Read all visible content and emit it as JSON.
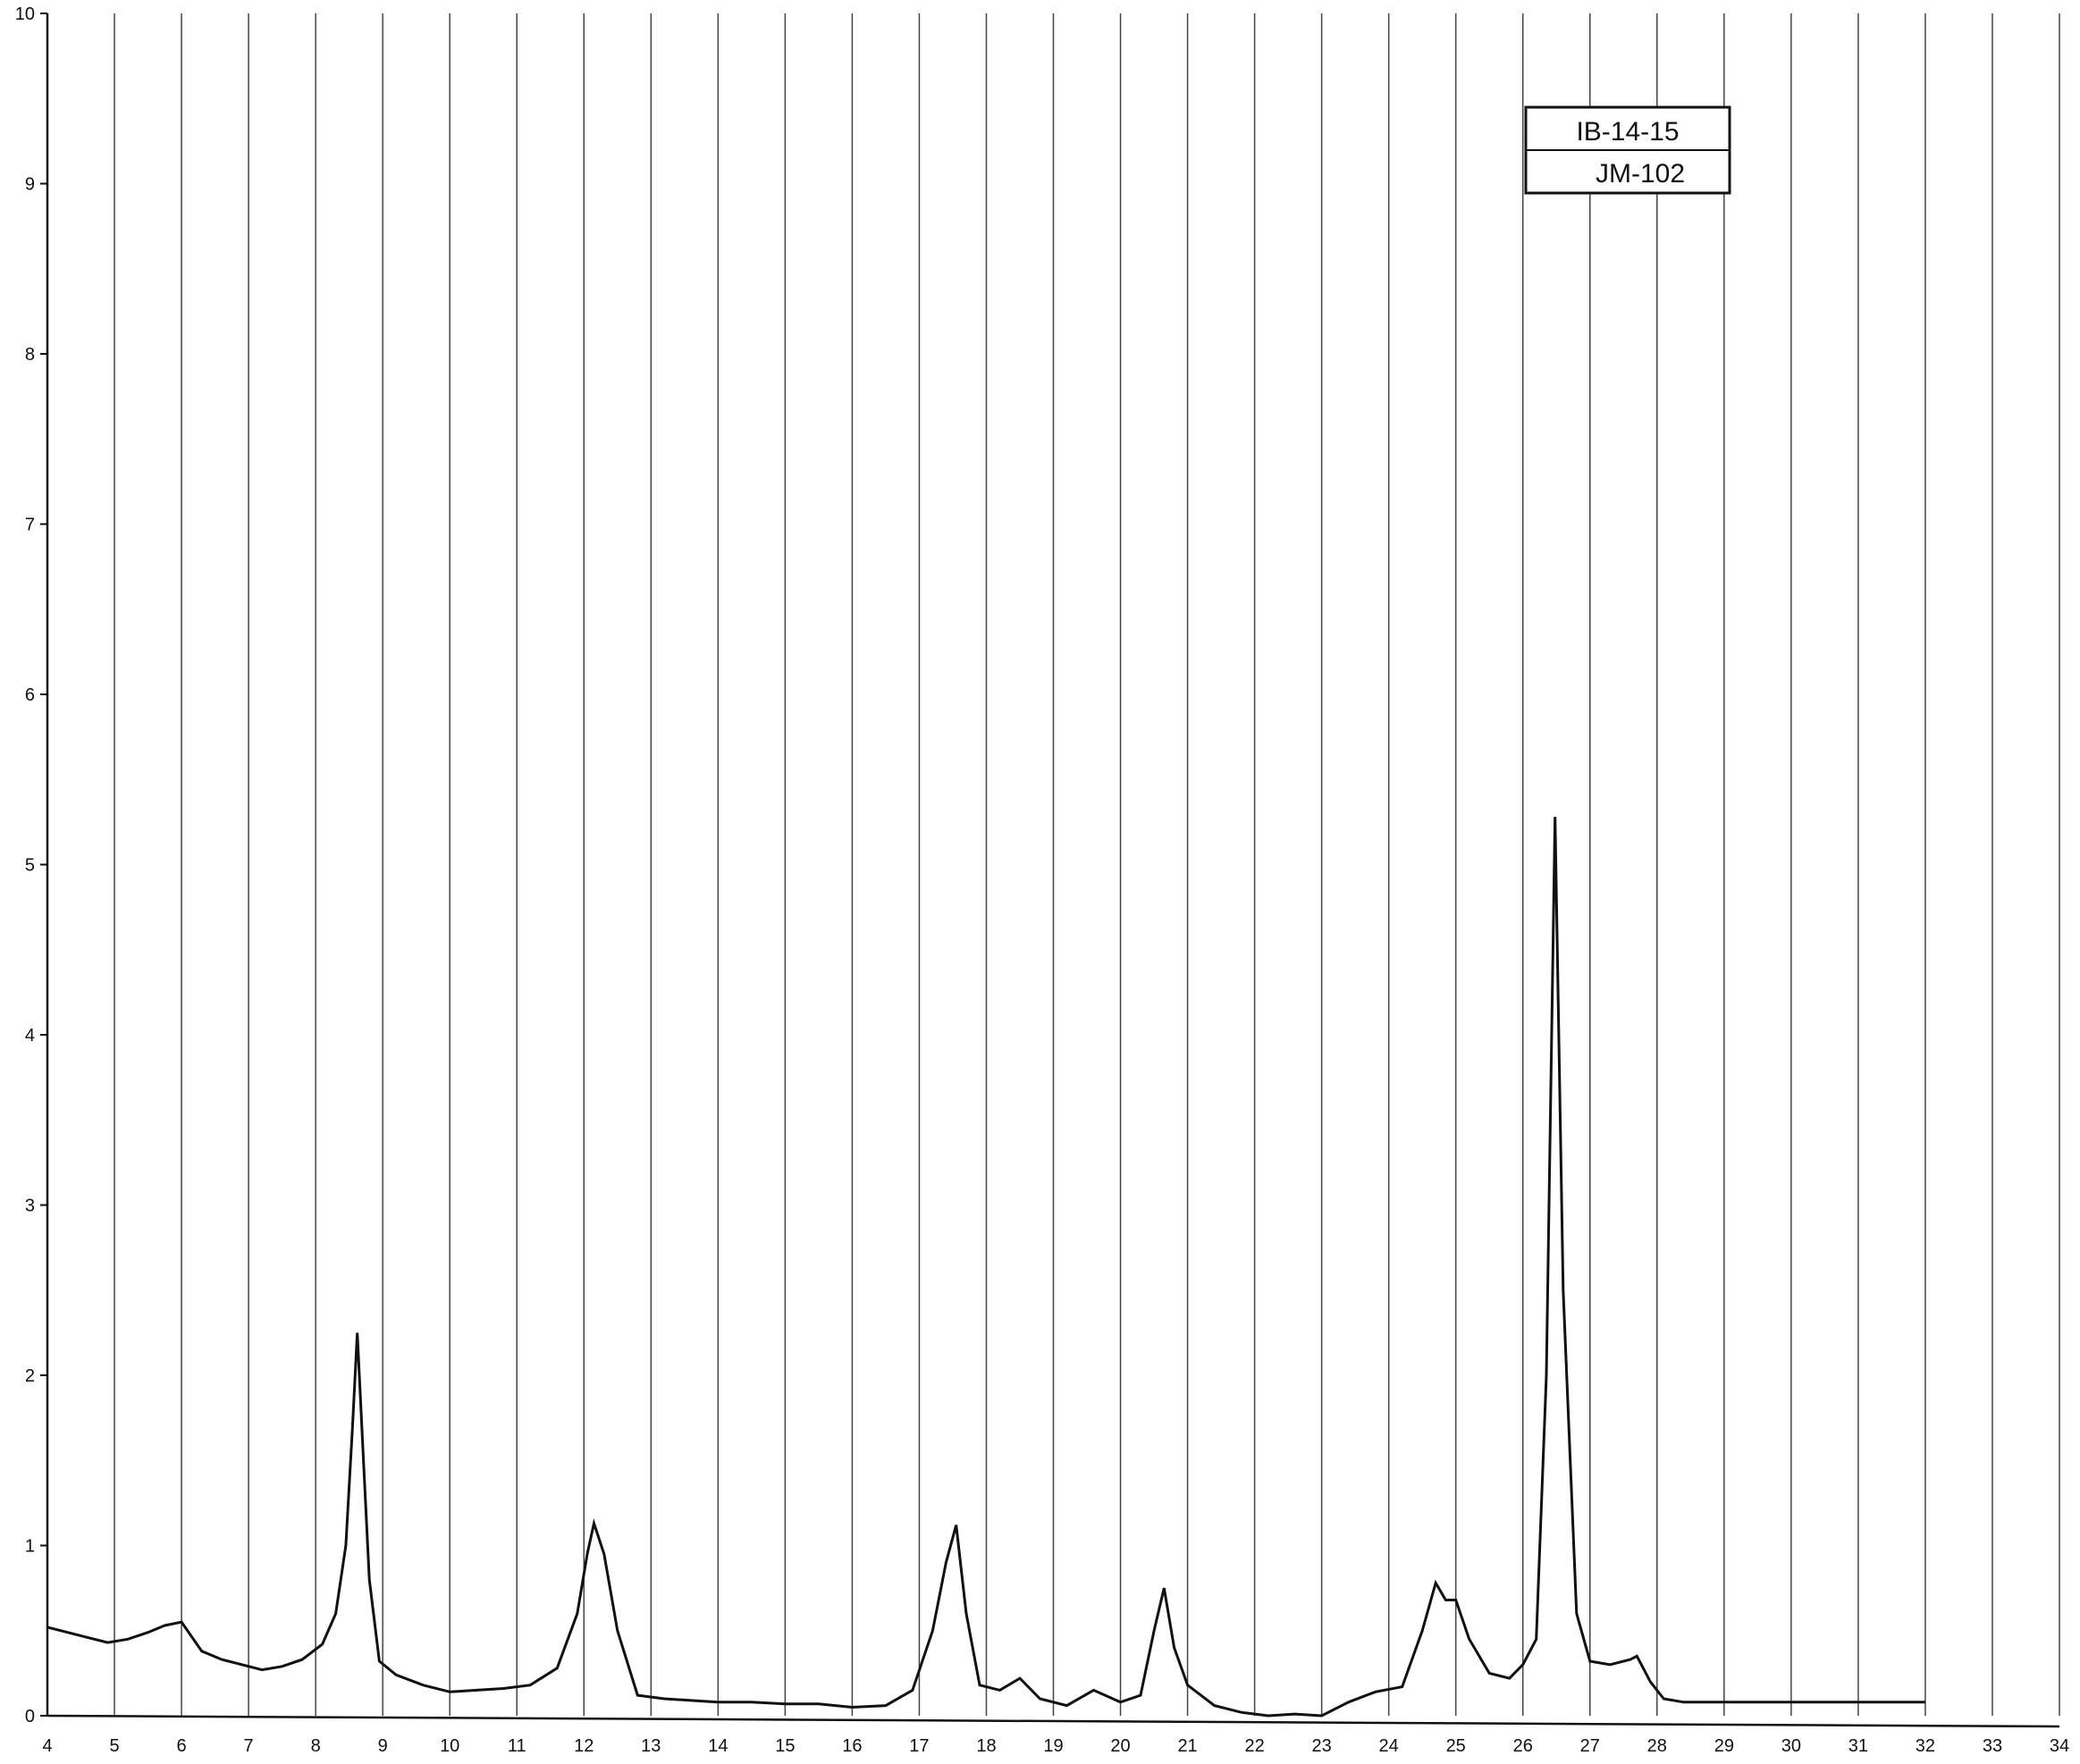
{
  "chart_data": {
    "type": "line",
    "title": "",
    "xlabel": "",
    "ylabel": "",
    "xlim": [
      4,
      34
    ],
    "ylim": [
      0,
      10
    ],
    "x_ticks": [
      "4",
      "5",
      "6",
      "7",
      "8",
      "9",
      "10",
      "11",
      "12",
      "13",
      "14",
      "15",
      "16",
      "17",
      "18",
      "19",
      "20",
      "21",
      "22",
      "23",
      "24",
      "25",
      "26",
      "27",
      "28",
      "29",
      "30",
      "31",
      "32",
      "33",
      "34"
    ],
    "y_ticks": [
      "0",
      "1",
      "2",
      "3",
      "4",
      "5",
      "6",
      "7",
      "8",
      "9",
      "10"
    ],
    "grid": "vertical",
    "label_box": {
      "line1": "IB-14-15",
      "line2": "JM-102"
    },
    "series": [
      {
        "x": [
          4.0,
          4.3,
          4.6,
          4.9,
          5.2,
          5.5,
          5.75,
          6.0,
          6.3,
          6.6,
          6.9,
          7.2,
          7.5,
          7.8,
          8.1,
          8.3,
          8.45,
          8.55,
          8.62,
          8.7,
          8.8,
          8.95,
          9.2,
          9.6,
          10.0,
          10.4,
          10.8,
          11.2,
          11.6,
          11.9,
          12.05,
          12.15,
          12.3,
          12.5,
          12.8,
          13.2,
          13.6,
          14.0,
          14.5,
          15.0,
          15.5,
          16.0,
          16.5,
          16.9,
          17.2,
          17.4,
          17.55,
          17.7,
          17.9,
          18.2,
          18.5,
          18.8,
          19.2,
          19.6,
          20.0,
          20.3,
          20.5,
          20.65,
          20.8,
          21.0,
          21.4,
          21.8,
          22.2,
          22.6,
          23.0,
          23.4,
          23.8,
          24.2,
          24.5,
          24.7,
          24.85,
          25.0,
          25.2,
          25.5,
          25.8,
          26.0,
          26.2,
          26.35,
          26.48,
          26.6,
          26.8,
          27.0,
          27.3,
          27.6,
          27.7,
          27.9,
          28.1,
          28.4,
          29.0,
          30.0,
          31.0,
          32.0
        ],
        "y": [
          0.52,
          0.49,
          0.46,
          0.43,
          0.45,
          0.49,
          0.53,
          0.55,
          0.38,
          0.33,
          0.3,
          0.27,
          0.29,
          0.33,
          0.42,
          0.6,
          1.0,
          1.7,
          2.25,
          1.6,
          0.8,
          0.32,
          0.24,
          0.18,
          0.14,
          0.15,
          0.16,
          0.18,
          0.28,
          0.6,
          0.95,
          1.13,
          0.95,
          0.5,
          0.12,
          0.1,
          0.09,
          0.08,
          0.08,
          0.07,
          0.07,
          0.05,
          0.06,
          0.15,
          0.5,
          0.9,
          1.12,
          0.6,
          0.18,
          0.15,
          0.22,
          0.1,
          0.06,
          0.15,
          0.08,
          0.12,
          0.5,
          0.75,
          0.4,
          0.18,
          0.06,
          0.02,
          0.0,
          0.01,
          0.0,
          0.08,
          0.14,
          0.17,
          0.5,
          0.78,
          0.68,
          0.68,
          0.45,
          0.25,
          0.22,
          0.3,
          0.45,
          2.0,
          5.28,
          2.5,
          0.6,
          0.32,
          0.3,
          0.33,
          0.35,
          0.2,
          0.1,
          0.08,
          0.08,
          0.08,
          0.08,
          0.08
        ]
      }
    ]
  }
}
